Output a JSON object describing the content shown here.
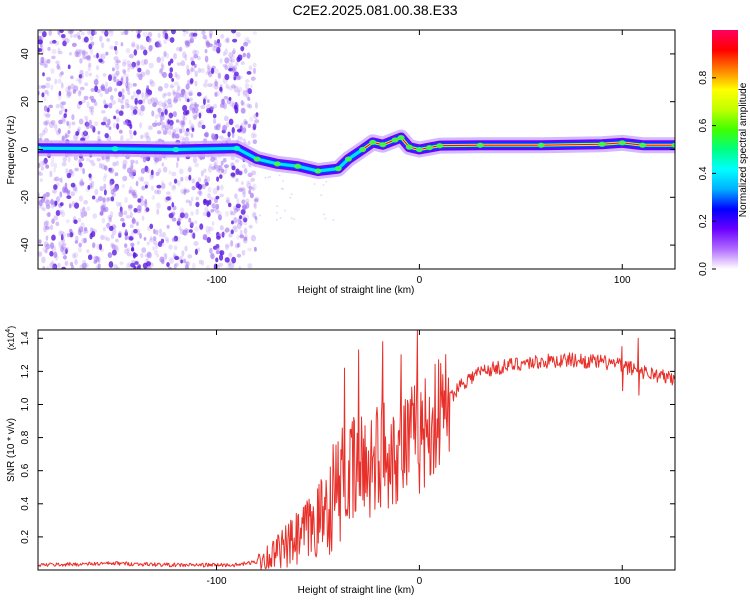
{
  "title": "C2E2.2025.081.00.38.E33",
  "chart_data": [
    {
      "type": "heatmap",
      "title": "C2E2.2025.081.00.38.E33",
      "xlabel": "Height of straight line (km)",
      "ylabel": "Frequency (Hz)",
      "xlim": [
        -188,
        126
      ],
      "ylim": [
        -50,
        50
      ],
      "xticks": [
        -100,
        0,
        100
      ],
      "yticks": [
        -40,
        -20,
        0,
        20,
        40
      ],
      "colorbar": {
        "label": "Normalized spectral amplitude",
        "range": [
          0.0,
          1.0
        ],
        "ticks": [
          "0.0",
          "0.2",
          "0.4",
          "0.6",
          "0.8"
        ],
        "colors": [
          "#ffffff",
          "#b06cff",
          "#6a00ff",
          "#0000ff",
          "#00b0ff",
          "#00ffff",
          "#00ff80",
          "#40ff00",
          "#c0ff00",
          "#ffff00",
          "#ff8000",
          "#ff0000",
          "#ff0060"
        ]
      },
      "noise_region_x": [
        -188,
        -80
      ],
      "doppler_track": [
        {
          "x": -188,
          "f": 0.5
        },
        {
          "x": -150,
          "f": 0.3
        },
        {
          "x": -120,
          "f": 0.0
        },
        {
          "x": -90,
          "f": 0.5
        },
        {
          "x": -80,
          "f": -4
        },
        {
          "x": -70,
          "f": -6
        },
        {
          "x": -60,
          "f": -7
        },
        {
          "x": -50,
          "f": -9
        },
        {
          "x": -40,
          "f": -8
        },
        {
          "x": -35,
          "f": -4
        },
        {
          "x": -28,
          "f": 0
        },
        {
          "x": -23,
          "f": 3
        },
        {
          "x": -18,
          "f": 2
        },
        {
          "x": -12,
          "f": 4
        },
        {
          "x": -9,
          "f": 5
        },
        {
          "x": -5,
          "f": 1
        },
        {
          "x": 0,
          "f": 0
        },
        {
          "x": 5,
          "f": 0.8
        },
        {
          "x": 10,
          "f": 1.6
        },
        {
          "x": 30,
          "f": 1.8
        },
        {
          "x": 60,
          "f": 1.8
        },
        {
          "x": 90,
          "f": 2.2
        },
        {
          "x": 100,
          "f": 2.8
        },
        {
          "x": 110,
          "f": 1.8
        },
        {
          "x": 126,
          "f": 1.8
        }
      ]
    },
    {
      "type": "line",
      "xlabel": "Height of straight line (km)",
      "ylabel": "SNR (10 * v/v)",
      "y_multiplier": "(x10",
      "y_exponent": "4",
      "y_multiplier_close": ")",
      "xlim": [
        -188,
        126
      ],
      "ylim": [
        0,
        1.45
      ],
      "xticks": [
        -100,
        0,
        100
      ],
      "yticks": [
        0.2,
        0.4,
        0.6,
        0.8,
        1.0,
        1.2,
        1.4
      ],
      "series": [
        {
          "name": "SNR",
          "color": "#e8302a",
          "points": [
            {
              "x": -188,
              "y": 0.03
            },
            {
              "x": -150,
              "y": 0.04
            },
            {
              "x": -120,
              "y": 0.03
            },
            {
              "x": -90,
              "y": 0.03
            },
            {
              "x": -80,
              "y": 0.05
            },
            {
              "x": -70,
              "y": 0.1
            },
            {
              "x": -60,
              "y": 0.18
            },
            {
              "x": -50,
              "y": 0.3
            },
            {
              "x": -40,
              "y": 0.5
            },
            {
              "x": -30,
              "y": 0.6
            },
            {
              "x": -20,
              "y": 0.7
            },
            {
              "x": -10,
              "y": 0.75
            },
            {
              "x": 0,
              "y": 0.8
            },
            {
              "x": 10,
              "y": 0.95
            },
            {
              "x": 20,
              "y": 1.12
            },
            {
              "x": 30,
              "y": 1.2
            },
            {
              "x": 50,
              "y": 1.25
            },
            {
              "x": 75,
              "y": 1.27
            },
            {
              "x": 95,
              "y": 1.25
            },
            {
              "x": 110,
              "y": 1.2
            },
            {
              "x": 126,
              "y": 1.15
            }
          ],
          "spikes": [
            {
              "x": -37,
              "y": 1.22
            },
            {
              "x": -30,
              "y": 1.33
            },
            {
              "x": -18,
              "y": 1.38
            },
            {
              "x": -9,
              "y": 1.3
            },
            {
              "x": -1,
              "y": 1.45
            },
            {
              "x": 100,
              "y": 1.35
            },
            {
              "x": 108,
              "y": 1.4
            }
          ]
        }
      ]
    }
  ]
}
